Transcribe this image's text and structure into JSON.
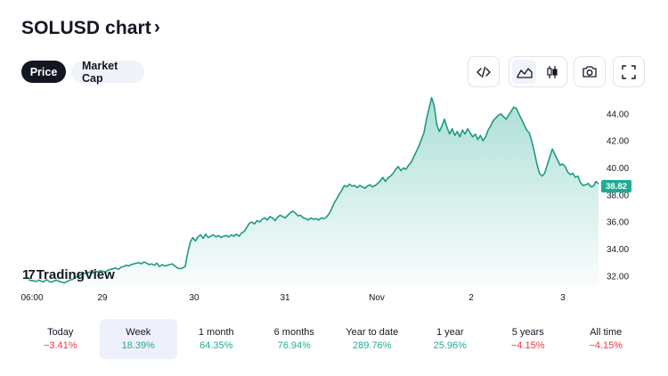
{
  "header": {
    "title": "SOLUSD chart",
    "chevron": "›"
  },
  "toggles": {
    "price_label": "Price",
    "market_cap_label": "Market Cap"
  },
  "toolbar": {
    "embed_icon": "code-icon",
    "area_icon": "area-chart-icon",
    "candles_icon": "candlestick-icon",
    "snapshot_icon": "camera-icon",
    "fullscreen_icon": "fullscreen-icon"
  },
  "watermark": {
    "text": "TradingView",
    "mark": "17"
  },
  "current_price": "38.82",
  "colors": {
    "line": "#1e9a83",
    "fill": "#22ab94",
    "badge": "#22ab94",
    "positive": "#22ab94",
    "negative": "#f23645"
  },
  "chart_data": {
    "type": "area",
    "y_ticks": [
      "44.00",
      "42.00",
      "40.00",
      "38.00",
      "36.00",
      "34.00",
      "32.00"
    ],
    "x_ticks": [
      "06:00",
      "29",
      "30",
      "31",
      "Nov",
      "2",
      "3"
    ],
    "ylim": [
      31.2,
      45.5
    ],
    "series": [
      {
        "values": [
          31.72,
          31.68,
          31.65,
          31.6,
          31.7,
          31.62,
          31.58,
          31.75,
          31.6,
          31.55,
          31.65,
          31.7,
          31.6,
          31.55,
          31.5,
          31.6,
          31.7,
          31.75,
          31.85,
          31.95,
          32.05,
          32.15,
          32.2,
          32.25,
          32.3,
          32.25,
          32.35,
          32.3,
          32.4,
          32.35,
          32.3,
          32.45,
          32.5,
          32.55,
          32.6,
          32.5,
          32.65,
          32.7,
          32.8,
          32.75,
          32.85,
          32.9,
          32.95,
          33.0,
          32.9,
          33.05,
          32.95,
          32.85,
          32.9,
          32.8,
          32.95,
          32.7,
          32.85,
          32.75,
          32.8,
          32.85,
          32.9,
          32.75,
          32.6,
          32.55,
          32.6,
          32.7,
          33.7,
          34.5,
          34.85,
          34.6,
          34.9,
          35.05,
          34.8,
          35.1,
          34.85,
          34.95,
          35.05,
          34.9,
          35.0,
          34.85,
          34.95,
          35.0,
          34.9,
          35.05,
          34.95,
          35.1,
          34.95,
          35.2,
          35.3,
          35.6,
          35.9,
          36.0,
          35.85,
          36.1,
          36.0,
          36.2,
          36.3,
          36.15,
          36.4,
          36.3,
          36.1,
          36.35,
          36.5,
          36.4,
          36.3,
          36.5,
          36.7,
          36.8,
          36.65,
          36.45,
          36.5,
          36.3,
          36.25,
          36.15,
          36.3,
          36.2,
          36.25,
          36.15,
          36.3,
          36.25,
          36.35,
          36.6,
          36.95,
          37.4,
          37.7,
          38.05,
          38.35,
          38.7,
          38.6,
          38.8,
          38.65,
          38.7,
          38.55,
          38.7,
          38.6,
          38.5,
          38.65,
          38.75,
          38.6,
          38.7,
          38.85,
          39.05,
          39.3,
          39.0,
          39.25,
          39.4,
          39.6,
          39.9,
          40.1,
          39.8,
          40.0,
          39.9,
          40.2,
          40.4,
          40.8,
          41.2,
          41.6,
          42.1,
          42.6,
          43.6,
          44.4,
          45.2,
          44.6,
          43.2,
          42.7,
          43.1,
          43.6,
          43.0,
          42.5,
          42.9,
          42.4,
          42.7,
          42.3,
          42.8,
          42.5,
          42.9,
          42.6,
          42.3,
          42.5,
          42.1,
          42.4,
          42.0,
          42.3,
          42.8,
          43.1,
          43.5,
          43.7,
          43.9,
          44.0,
          43.8,
          43.6,
          43.9,
          44.2,
          44.5,
          44.4,
          44.0,
          43.6,
          43.2,
          42.8,
          42.6,
          42.0,
          41.2,
          40.3,
          39.6,
          39.4,
          39.6,
          40.2,
          40.8,
          41.4,
          41.0,
          40.6,
          40.2,
          40.3,
          40.1,
          39.7,
          39.5,
          39.6,
          39.3,
          39.4,
          38.9,
          38.7,
          38.75,
          38.85,
          38.6,
          38.65,
          39.0,
          38.82
        ]
      }
    ]
  },
  "periods": [
    {
      "label": "Today",
      "value": "−3.41%",
      "sign": "neg",
      "selected": false
    },
    {
      "label": "Week",
      "value": "18.39%",
      "sign": "pos",
      "selected": true
    },
    {
      "label": "1 month",
      "value": "64.35%",
      "sign": "pos",
      "selected": false
    },
    {
      "label": "6 months",
      "value": "76.94%",
      "sign": "pos",
      "selected": false
    },
    {
      "label": "Year to date",
      "value": "289.76%",
      "sign": "pos",
      "selected": false
    },
    {
      "label": "1 year",
      "value": "25.96%",
      "sign": "pos",
      "selected": false
    },
    {
      "label": "5 years",
      "value": "−4.15%",
      "sign": "neg",
      "selected": false
    },
    {
      "label": "All time",
      "value": "−4.15%",
      "sign": "neg",
      "selected": false
    }
  ]
}
